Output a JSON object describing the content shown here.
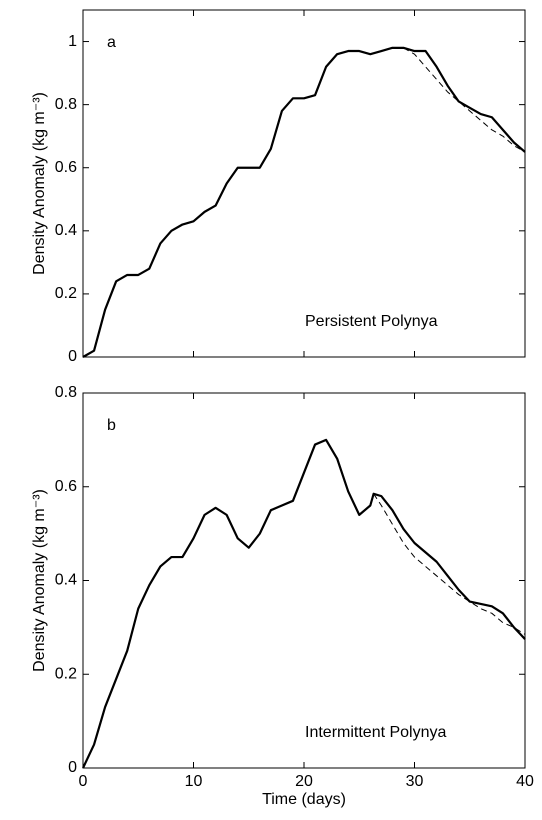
{
  "chart_data": [
    {
      "type": "line",
      "label": "a",
      "annotation": "Persistent Polynya",
      "ylabel": "Density Anomaly (kg m⁻³)",
      "x": [
        0,
        1,
        2,
        3,
        4,
        5,
        6,
        7,
        8,
        9,
        10,
        11,
        12,
        13,
        14,
        15,
        16,
        17,
        18,
        19,
        20,
        21,
        22,
        23,
        24,
        25,
        26,
        27,
        28,
        29,
        30,
        31,
        32,
        33,
        34,
        35,
        36,
        37,
        38,
        39,
        40
      ],
      "series": [
        {
          "color": "#000000",
          "style": "solid",
          "values": [
            0,
            0.02,
            0.15,
            0.24,
            0.26,
            0.26,
            0.28,
            0.36,
            0.4,
            0.42,
            0.43,
            0.46,
            0.48,
            0.55,
            0.6,
            0.6,
            0.6,
            0.66,
            0.78,
            0.82,
            0.82,
            0.83,
            0.92,
            0.96,
            0.97,
            0.97,
            0.96,
            0.97,
            0.98,
            0.98,
            0.97,
            0.97,
            0.92,
            0.86,
            0.81,
            0.79,
            0.77,
            0.76,
            0.72,
            0.68,
            0.65
          ]
        },
        {
          "color": "#000000",
          "style": "dashed",
          "values": [
            null,
            null,
            null,
            null,
            null,
            null,
            null,
            null,
            null,
            null,
            null,
            null,
            null,
            null,
            null,
            null,
            null,
            null,
            null,
            null,
            null,
            null,
            null,
            null,
            null,
            null,
            null,
            null,
            null,
            0.98,
            0.96,
            0.92,
            0.88,
            0.84,
            0.81,
            0.78,
            0.75,
            0.72,
            0.7,
            0.67,
            0.65
          ]
        }
      ],
      "xlim": [
        0,
        40
      ],
      "xticks": [
        0,
        10,
        20,
        30,
        40
      ],
      "ylim": [
        0,
        1.1
      ],
      "yticks": [
        0,
        0.2,
        0.4,
        0.6,
        0.8,
        1
      ]
    },
    {
      "type": "line",
      "label": "b",
      "annotation": "Intermittent Polynya",
      "ylabel": "Density Anomaly (kg m⁻³)",
      "xlabel": "Time (days)",
      "x": [
        0,
        1,
        2,
        3,
        4,
        5,
        6,
        7,
        8,
        9,
        10,
        11,
        12,
        13,
        14,
        15,
        16,
        17,
        18,
        19,
        20,
        21,
        22,
        23,
        24,
        25,
        26,
        26.3,
        27,
        28,
        29,
        30,
        31,
        32,
        33,
        34,
        35,
        36,
        37,
        38,
        39,
        40
      ],
      "series": [
        {
          "color": "#000000",
          "style": "solid",
          "values": [
            0,
            0.05,
            0.13,
            0.19,
            0.25,
            0.34,
            0.39,
            0.43,
            0.45,
            0.45,
            0.49,
            0.54,
            0.555,
            0.54,
            0.49,
            0.47,
            0.5,
            0.55,
            0.56,
            0.57,
            0.63,
            0.69,
            0.7,
            0.66,
            0.59,
            0.54,
            0.56,
            0.585,
            0.58,
            0.55,
            0.51,
            0.48,
            0.46,
            0.44,
            0.41,
            0.38,
            0.355,
            0.35,
            0.345,
            0.33,
            0.3,
            0.275
          ]
        },
        {
          "color": "#000000",
          "style": "dashed",
          "values": [
            null,
            null,
            null,
            null,
            null,
            null,
            null,
            null,
            null,
            null,
            null,
            null,
            null,
            null,
            null,
            null,
            null,
            null,
            null,
            null,
            null,
            null,
            null,
            null,
            null,
            null,
            null,
            0.585,
            0.56,
            0.52,
            0.48,
            0.45,
            0.43,
            0.41,
            0.39,
            0.37,
            0.355,
            0.34,
            0.33,
            0.31,
            0.3,
            0.285
          ]
        }
      ],
      "xlim": [
        0,
        40
      ],
      "xticks": [
        0,
        10,
        20,
        30,
        40
      ],
      "ylim": [
        0,
        0.8
      ],
      "yticks": [
        0,
        0.2,
        0.4,
        0.6,
        0.8
      ]
    }
  ]
}
